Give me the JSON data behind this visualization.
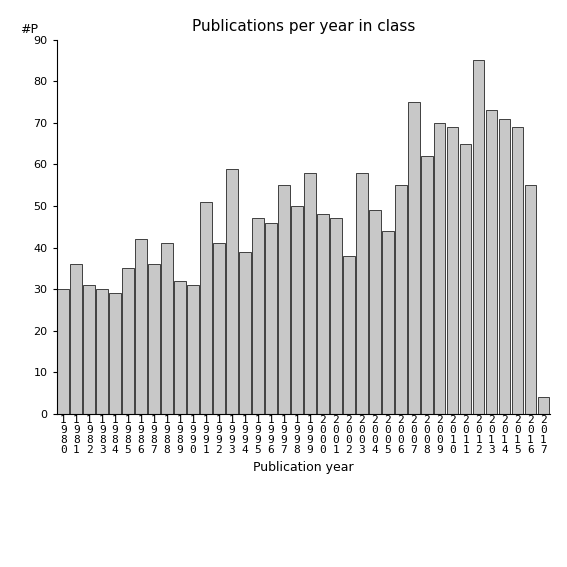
{
  "title": "Publications per year in class",
  "xlabel": "Publication year",
  "ylabel": "#P",
  "years": [
    1980,
    1981,
    1982,
    1983,
    1984,
    1985,
    1986,
    1987,
    1988,
    1989,
    1990,
    1991,
    1992,
    1993,
    1994,
    1995,
    1996,
    1997,
    1998,
    1999,
    2000,
    2001,
    2002,
    2003,
    2004,
    2005,
    2006,
    2007,
    2008,
    2009,
    2010,
    2011,
    2012,
    2013,
    2014,
    2015,
    2016,
    2017
  ],
  "values": [
    30,
    36,
    31,
    30,
    29,
    35,
    42,
    36,
    41,
    32,
    31,
    51,
    41,
    59,
    39,
    47,
    46,
    55,
    50,
    58,
    48,
    47,
    38,
    58,
    49,
    44,
    55,
    75,
    62,
    70,
    69,
    65,
    85,
    73,
    71,
    69,
    55,
    4
  ],
  "bar_color": "#c8c8c8",
  "bar_edge_color": "#000000",
  "bar_linewidth": 0.5,
  "ylim": [
    0,
    90
  ],
  "yticks": [
    0,
    10,
    20,
    30,
    40,
    50,
    60,
    70,
    80,
    90
  ],
  "background_color": "#ffffff",
  "title_fontsize": 11,
  "axis_label_fontsize": 9,
  "tick_fontsize": 8,
  "ylabel_fontsize": 9
}
